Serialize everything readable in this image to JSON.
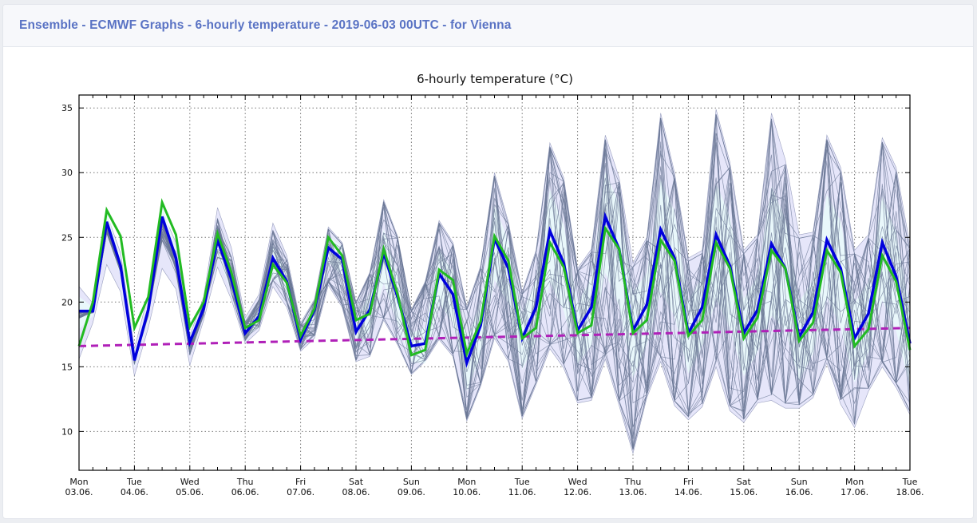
{
  "header": {
    "title": "Ensemble - ECMWF Graphs - 6-hourly temperature - 2019-06-03 00UTC - for Vienna"
  },
  "chart_data": {
    "type": "line",
    "title": "6-hourly temperature (°C)",
    "xlabel": "",
    "ylabel": "",
    "ylim": [
      7,
      36
    ],
    "yticks": [
      10,
      15,
      20,
      25,
      30,
      35
    ],
    "grid": true,
    "step_hours": 6,
    "x_ticks": [
      {
        "day": "Mon",
        "date": "03.06."
      },
      {
        "day": "Tue",
        "date": "04.06."
      },
      {
        "day": "Wed",
        "date": "05.06."
      },
      {
        "day": "Thu",
        "date": "06.06."
      },
      {
        "day": "Fri",
        "date": "07.06."
      },
      {
        "day": "Sat",
        "date": "08.06."
      },
      {
        "day": "Sun",
        "date": "09.06."
      },
      {
        "day": "Mon",
        "date": "10.06."
      },
      {
        "day": "Tue",
        "date": "11.06."
      },
      {
        "day": "Wed",
        "date": "12.06."
      },
      {
        "day": "Thu",
        "date": "13.06."
      },
      {
        "day": "Fri",
        "date": "14.06."
      },
      {
        "day": "Sat",
        "date": "15.06."
      },
      {
        "day": "Sun",
        "date": "16.06."
      },
      {
        "day": "Mon",
        "date": "17.06."
      },
      {
        "day": "Tue",
        "date": "18.06."
      }
    ],
    "series": [
      {
        "name": "ensemble-max",
        "color": "#e6e6fa",
        "values": [
          21.2,
          19.9,
          26.8,
          23.8,
          16.4,
          20.6,
          27.0,
          24.6,
          17.4,
          20.4,
          27.3,
          24.2,
          18.8,
          20.6,
          26.1,
          23.6,
          18.4,
          20.2,
          25.8,
          24.6,
          20.0,
          22.3,
          27.9,
          25.1,
          19.4,
          21.6,
          26.3,
          24.6,
          19.6,
          22.8,
          30.0,
          26.2,
          20.8,
          24.0,
          32.3,
          29.6,
          22.6,
          24.1,
          32.9,
          29.6,
          23.0,
          25.0,
          34.6,
          30.0,
          23.4,
          24.0,
          34.9,
          30.8,
          24.0,
          25.2,
          34.6,
          31.0,
          25.2,
          25.4,
          32.9,
          30.4,
          24.0,
          25.2,
          32.7,
          30.4,
          24.4
        ]
      },
      {
        "name": "ensemble-min",
        "color": "#e6e6fa",
        "values": [
          15.6,
          18.4,
          22.9,
          20.8,
          14.3,
          18.0,
          22.6,
          21.0,
          15.1,
          18.6,
          22.7,
          20.2,
          16.8,
          17.8,
          21.2,
          19.6,
          16.2,
          17.2,
          21.3,
          19.6,
          15.4,
          15.8,
          18.6,
          16.7,
          14.4,
          15.4,
          17.1,
          15.8,
          10.8,
          13.5,
          17.2,
          15.4,
          11.0,
          13.6,
          16.4,
          14.9,
          12.2,
          12.4,
          15.6,
          12.0,
          8.3,
          12.6,
          15.4,
          12.0,
          10.9,
          11.9,
          15.0,
          11.6,
          10.7,
          12.2,
          12.4,
          11.8,
          11.8,
          12.6,
          15.3,
          12.1,
          10.3,
          13.1,
          15.0,
          13.4,
          11.3
        ]
      },
      {
        "name": "ensemble-mean",
        "color": "#0000dd",
        "values": [
          19.3,
          19.3,
          26.2,
          22.8,
          15.5,
          19.4,
          26.6,
          23.4,
          16.9,
          19.5,
          24.8,
          21.8,
          17.6,
          18.9,
          23.4,
          21.6,
          17.1,
          19.4,
          24.2,
          23.3,
          17.7,
          19.4,
          23.8,
          20.4,
          16.6,
          16.8,
          22.2,
          20.6,
          15.3,
          18.2,
          24.9,
          22.6,
          17.2,
          19.6,
          25.5,
          23.0,
          17.8,
          19.6,
          26.6,
          24.1,
          17.8,
          19.8,
          25.6,
          23.4,
          17.6,
          19.6,
          25.2,
          22.8,
          17.6,
          19.4,
          24.5,
          22.6,
          17.3,
          19.2,
          24.8,
          22.6,
          17.2,
          19.1,
          24.6,
          22.0,
          16.8
        ]
      },
      {
        "name": "control",
        "color": "#22bb22",
        "values": [
          16.6,
          20.0,
          27.1,
          25.1,
          18.0,
          20.4,
          27.7,
          25.2,
          18.1,
          20.0,
          25.3,
          22.3,
          18.0,
          18.6,
          22.9,
          21.5,
          17.4,
          19.5,
          25.0,
          23.6,
          18.6,
          19.1,
          24.1,
          20.6,
          15.9,
          16.3,
          22.5,
          21.7,
          16.0,
          18.5,
          25.1,
          23.2,
          17.2,
          18.0,
          24.6,
          22.7,
          17.6,
          18.2,
          25.7,
          24.1,
          17.6,
          18.6,
          24.8,
          23.2,
          17.4,
          18.6,
          24.6,
          22.6,
          17.2,
          18.8,
          24.0,
          22.6,
          17.0,
          18.4,
          24.0,
          22.3,
          16.6,
          17.9,
          23.6,
          21.6,
          16.3
        ]
      },
      {
        "name": "climate",
        "color": "#b020b8",
        "dashed": true,
        "start": 16.6,
        "end": 18.0
      }
    ]
  }
}
